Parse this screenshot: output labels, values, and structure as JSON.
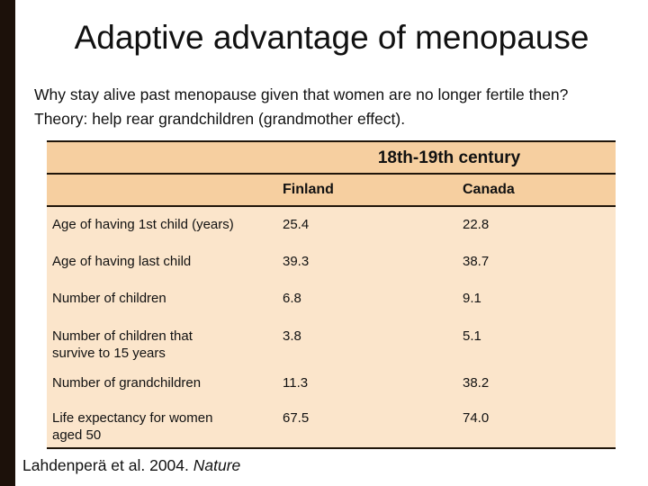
{
  "slide": {
    "title": "Adaptive advantage of menopause",
    "intro_line1": "Why stay alive past menopause given that women are no longer fertile then?",
    "intro_line2": "Theory: help rear grandchildren (grandmother effect).",
    "citation_text": "Lahdenperä et al. 2004.",
    "citation_source": "Nature"
  },
  "table": {
    "era_header": "18th-19th century",
    "columns": [
      "Finland",
      "Canada"
    ],
    "rows": [
      {
        "label": "Age of having 1st child (years)",
        "finland": "25.4",
        "canada": "22.8"
      },
      {
        "label": "Age of having last child",
        "finland": "39.3",
        "canada": "38.7"
      },
      {
        "label": "Number of children",
        "finland": "6.8",
        "canada": "9.1"
      },
      {
        "label": "Number of children that\nsurvive to 15 years",
        "finland": "3.8",
        "canada": "5.1"
      },
      {
        "label": "Number of grandchildren",
        "finland": "11.3",
        "canada": "38.2"
      },
      {
        "label": "Life expectancy for women\naged 50",
        "finland": "67.5",
        "canada": "74.0"
      }
    ]
  },
  "colors": {
    "header_fill": "#f6cfa0",
    "body_fill": "#fbe5cb",
    "border_line": "#1f150a",
    "left_bar": "#1c110a",
    "text": "#111111"
  }
}
